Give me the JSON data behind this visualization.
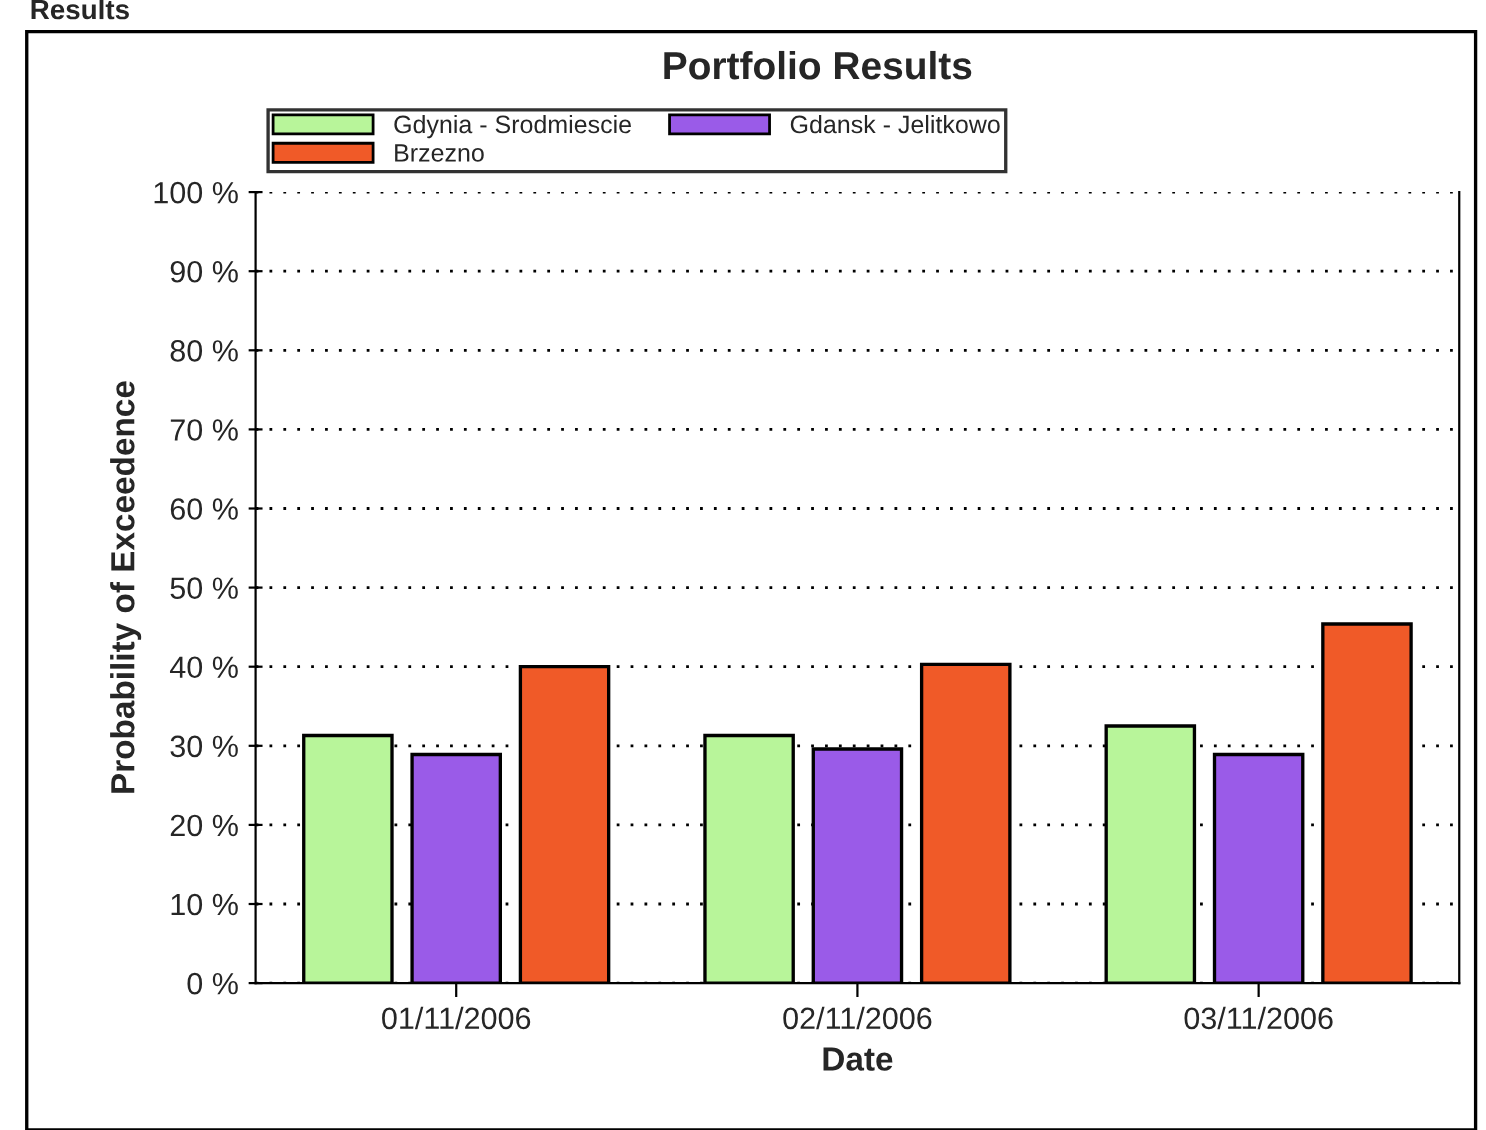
{
  "chart_data": {
    "type": "bar",
    "title": "Portfolio Results",
    "xlabel": "Date",
    "ylabel": "Probability of Exceedence",
    "annotations": [
      "Results"
    ],
    "categories": [
      "01/11/2006",
      "02/11/2006",
      "03/11/2006"
    ],
    "series": [
      {
        "name": "Gdynia - Srodmiescie",
        "color": "#b8f59a",
        "values": [
          31.3,
          31.3,
          32.5
        ]
      },
      {
        "name": "Gdansk - Jelitkowo",
        "color": "#9a5be8",
        "values": [
          28.9,
          29.6,
          28.9
        ]
      },
      {
        "name": "Brzezno",
        "color": "#f05a28",
        "values": [
          40,
          40.3,
          45.4
        ]
      }
    ],
    "ylim": [
      0,
      100
    ],
    "yticks": [
      {
        "value": 0,
        "label": "0 %"
      },
      {
        "value": 10,
        "label": "10 %"
      },
      {
        "value": 20,
        "label": "20 %"
      },
      {
        "value": 30,
        "label": "30 %"
      },
      {
        "value": 40,
        "label": "40 %"
      },
      {
        "value": 50,
        "label": "50 %"
      },
      {
        "value": 60,
        "label": "60 %"
      },
      {
        "value": 70,
        "label": "70 %"
      },
      {
        "value": 80,
        "label": "80 %"
      },
      {
        "value": 90,
        "label": "90 %"
      },
      {
        "value": 100,
        "label": "100 %"
      }
    ],
    "grid": "y",
    "legend": "top"
  }
}
